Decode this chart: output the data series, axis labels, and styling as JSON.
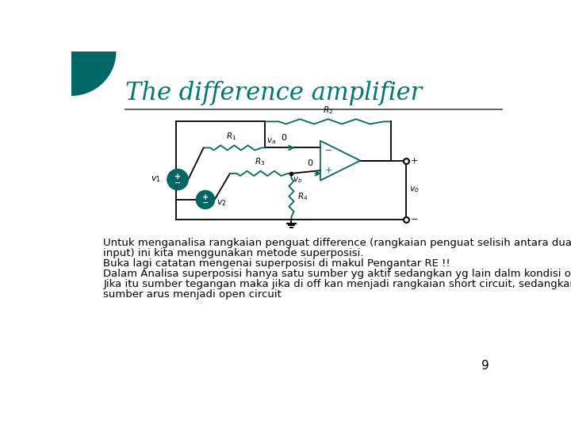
{
  "title": "The difference amplifier",
  "title_color": "#007777",
  "title_fontsize": 22,
  "bg_color": "#ffffff",
  "teal_color": "#006666",
  "body_text": [
    "Untuk menganalisa rangkaian penguat difference (rangkaian penguat selisih antara dua",
    "input) ini kita menggunakan metode superposisi.",
    "Buka lagi catatan mengenai superposisi di makul Pengantar RE !!",
    "Dalam Analisa superposisi hanya satu sumber yg aktif sedangkan yg lain dalm kondisi off",
    "Jika itu sumber tegangan maka jika di off kan menjadi rangkaian short circuit, sedangkan",
    "sumber arus menjadi open circuit"
  ],
  "body_fontsize": 9.5,
  "page_number": "9",
  "line_color": "#000000",
  "resistor_color": "#007777",
  "circuit_bg": "#e8f0f0"
}
